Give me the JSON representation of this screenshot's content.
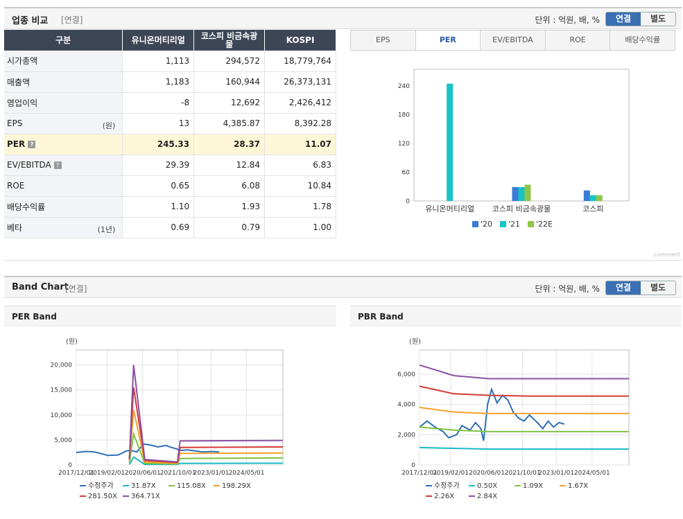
{
  "section1": {
    "title": "업종 비교",
    "sub": "[연결]",
    "unit": "단위 : 억원, 배, %",
    "toggle": [
      "연결",
      "별도"
    ]
  },
  "table": {
    "headers": [
      "구분",
      "유니온머티리얼",
      "코스피 비금속광물",
      "KOSPI"
    ],
    "rows": [
      {
        "label": "시가총액",
        "unit": "",
        "values": [
          "1,113",
          "294,572",
          "18,779,764"
        ]
      },
      {
        "label": "매출액",
        "unit": "",
        "values": [
          "1,183",
          "160,944",
          "26,373,131"
        ]
      },
      {
        "label": "영업이익",
        "unit": "",
        "values": [
          "-8",
          "12,692",
          "2,426,412"
        ]
      },
      {
        "label": "EPS",
        "unit": "(원)",
        "values": [
          "13",
          "4,385.87",
          "8,392.28"
        ]
      },
      {
        "label": "PER",
        "unit": "",
        "values": [
          "245.33",
          "28.37",
          "11.07"
        ]
      },
      {
        "label": "EV/EBITDA",
        "unit": "",
        "values": [
          "29.39",
          "12.84",
          "6.83"
        ]
      },
      {
        "label": "ROE",
        "unit": "",
        "values": [
          "0.65",
          "6.08",
          "10.84"
        ]
      },
      {
        "label": "배당수익률",
        "unit": "",
        "values": [
          "1.10",
          "1.93",
          "1.78"
        ]
      },
      {
        "label": "베타",
        "unit": "(1년)",
        "values": [
          "0.69",
          "0.79",
          "1.00"
        ]
      }
    ]
  },
  "tabs": [
    "EPS",
    "PER",
    "EV/EBITDA",
    "ROE",
    "배당수익률"
  ],
  "comment": "comment",
  "section2": {
    "title": "Band Chart",
    "sub": "[연결]",
    "unit": "단위 : 억원, 배, %",
    "toggle": [
      "연결",
      "별도"
    ]
  },
  "per_band_title": "PER Band",
  "pbr_band_title": "PBR Band",
  "chart_data": [
    {
      "type": "bar",
      "categories": [
        "유니온머티리얼",
        "코스피 비금속광물",
        "코스피"
      ],
      "series": [
        {
          "name": "'20",
          "color": "#3a7bd5",
          "values": [
            null,
            29,
            22
          ]
        },
        {
          "name": "'21",
          "color": "#17c2c8",
          "values": [
            245,
            29,
            12
          ]
        },
        {
          "name": "'22E",
          "color": "#8fc64a",
          "values": [
            null,
            34,
            12
          ]
        }
      ],
      "yticks": [
        0,
        60,
        120,
        180,
        240
      ],
      "ylim": [
        0,
        275
      ]
    },
    {
      "type": "line",
      "title": "PER Band",
      "ylabel": "(원)",
      "yticks": [
        "0",
        "5,000",
        "10,000",
        "15,000",
        "20,000"
      ],
      "ylim": [
        0,
        23000
      ],
      "xticks": [
        "2017/12/01",
        "2019/02/01",
        "2020/06/01",
        "2021/10/01",
        "2023/01/01",
        "2024/05/01"
      ],
      "xlim": [
        2017.92,
        2025.7
      ],
      "series": [
        {
          "name": "수정주가",
          "color": "#2e6fb5",
          "x": [
            2017.92,
            2018.3,
            2018.6,
            2018.9,
            2019.1,
            2019.5,
            2019.8,
            2020.0,
            2020.2,
            2020.45,
            2020.7,
            2021.0,
            2021.3,
            2021.5,
            2021.7,
            2021.83,
            2022.1,
            2022.4,
            2022.7,
            2023.0,
            2023.3
          ],
          "y": [
            2500,
            2700,
            2600,
            2200,
            1900,
            2000,
            2800,
            2900,
            2600,
            4200,
            4000,
            3600,
            3900,
            3500,
            3200,
            2900,
            3000,
            2800,
            2600,
            2700,
            2600
          ]
        },
        {
          "name": "31.87X",
          "color": "#19b9c7",
          "x": [
            2019.92,
            2020.08,
            2020.5,
            2021.73,
            2021.83,
            2025.7
          ],
          "y": [
            100,
            1600,
            100,
            100,
            300,
            350
          ]
        },
        {
          "name": "115.08X",
          "color": "#7fc241",
          "x": [
            2019.92,
            2020.08,
            2020.5,
            2021.73,
            2021.83,
            2025.7
          ],
          "y": [
            400,
            6200,
            300,
            200,
            1300,
            1400
          ]
        },
        {
          "name": "198.29X",
          "color": "#f3a12a",
          "x": [
            2019.92,
            2020.08,
            2020.5,
            2021.73,
            2021.83,
            2025.7
          ],
          "y": [
            800,
            11000,
            600,
            300,
            2300,
            2400
          ]
        },
        {
          "name": "281.50X",
          "color": "#d43a33",
          "x": [
            2019.92,
            2020.08,
            2020.5,
            2021.73,
            2021.83,
            2025.7
          ],
          "y": [
            1100,
            15500,
            900,
            500,
            3500,
            3600
          ]
        },
        {
          "name": "364.71X",
          "color": "#8b4fa3",
          "x": [
            2019.92,
            2020.08,
            2020.5,
            2021.73,
            2021.83,
            2025.7
          ],
          "y": [
            1300,
            20000,
            1100,
            600,
            4800,
            4900
          ]
        }
      ]
    },
    {
      "type": "line",
      "title": "PBR Band",
      "ylabel": "(원)",
      "yticks": [
        "0",
        "2,000",
        "4,000",
        "6,000"
      ],
      "ylim": [
        0,
        7600
      ],
      "xticks": [
        "2017/12/01",
        "2019/02/01",
        "2020/06/01",
        "2021/10/01",
        "2023/01/01",
        "2024/05/01"
      ],
      "xlim": [
        2017.92,
        2025.7
      ],
      "series": [
        {
          "name": "수정주가",
          "color": "#2e6fb5",
          "x": [
            2017.92,
            2018.2,
            2018.5,
            2018.8,
            2019.0,
            2019.3,
            2019.5,
            2019.8,
            2020.0,
            2020.2,
            2020.3,
            2020.45,
            2020.6,
            2020.8,
            2021.0,
            2021.2,
            2021.4,
            2021.6,
            2021.8,
            2022.0,
            2022.3,
            2022.5,
            2022.7,
            2022.9,
            2023.1,
            2023.3
          ],
          "y": [
            2500,
            2900,
            2500,
            2200,
            1800,
            2000,
            2600,
            2300,
            2800,
            2400,
            1600,
            4000,
            5000,
            4100,
            4600,
            4300,
            3500,
            3100,
            2900,
            3300,
            2800,
            2400,
            2900,
            2500,
            2800,
            2700
          ]
        },
        {
          "name": "0.50X",
          "color": "#19b9c7",
          "x": [
            2017.92,
            2019.2,
            2020.5,
            2022.0,
            2025.7
          ],
          "y": [
            1150,
            1100,
            1050,
            1050,
            1050
          ]
        },
        {
          "name": "1.09X",
          "color": "#7fc241",
          "x": [
            2017.92,
            2019.2,
            2020.5,
            2022.0,
            2025.7
          ],
          "y": [
            2500,
            2300,
            2200,
            2200,
            2200
          ]
        },
        {
          "name": "1.67X",
          "color": "#f3a12a",
          "x": [
            2017.92,
            2019.2,
            2020.5,
            2022.0,
            2025.7
          ],
          "y": [
            3800,
            3500,
            3400,
            3400,
            3400
          ]
        },
        {
          "name": "2.26X",
          "color": "#d43a33",
          "x": [
            2017.92,
            2019.2,
            2020.5,
            2022.0,
            2025.7
          ],
          "y": [
            5200,
            4700,
            4600,
            4550,
            4550
          ]
        },
        {
          "name": "2.84X",
          "color": "#8b4fa3",
          "x": [
            2017.92,
            2019.2,
            2020.5,
            2022.0,
            2025.7
          ],
          "y": [
            6600,
            5900,
            5700,
            5700,
            5700
          ]
        }
      ]
    }
  ]
}
